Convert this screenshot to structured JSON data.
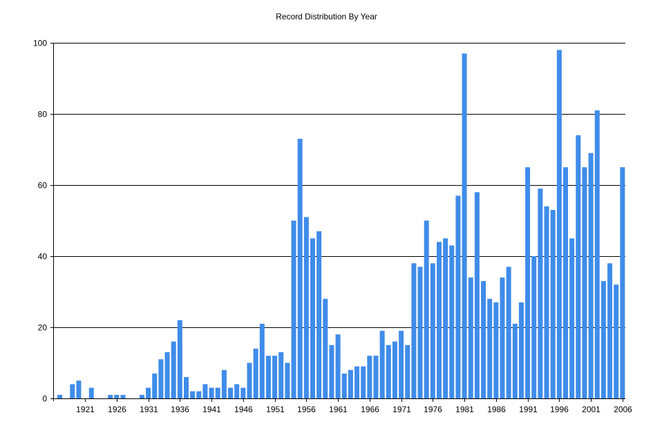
{
  "chart_data": {
    "type": "bar",
    "title": "Record Distribution By Year",
    "xlabel": "",
    "ylabel": "",
    "ylim": [
      0,
      100
    ],
    "yticks": [
      0,
      20,
      40,
      60,
      80,
      100
    ],
    "xticks": [
      1921,
      1926,
      1931,
      1936,
      1941,
      1946,
      1951,
      1956,
      1961,
      1966,
      1971,
      1976,
      1981,
      1986,
      1991,
      1996,
      2001,
      2006
    ],
    "grid": true,
    "bar_color": "#3f8cea",
    "years": [
      1917,
      1918,
      1919,
      1920,
      1921,
      1922,
      1923,
      1924,
      1925,
      1926,
      1927,
      1928,
      1929,
      1930,
      1931,
      1932,
      1933,
      1934,
      1935,
      1936,
      1937,
      1938,
      1939,
      1940,
      1941,
      1942,
      1943,
      1944,
      1945,
      1946,
      1947,
      1948,
      1949,
      1950,
      1951,
      1952,
      1953,
      1954,
      1955,
      1956,
      1957,
      1958,
      1959,
      1960,
      1961,
      1962,
      1963,
      1964,
      1965,
      1966,
      1967,
      1968,
      1969,
      1970,
      1971,
      1972,
      1973,
      1974,
      1975,
      1976,
      1977,
      1978,
      1979,
      1980,
      1981,
      1982,
      1983,
      1984,
      1985,
      1986,
      1987,
      1988,
      1989,
      1990,
      1991,
      1992,
      1993,
      1994,
      1995,
      1996,
      1997,
      1998,
      1999,
      2000,
      2001,
      2002,
      2003,
      2004,
      2005,
      2006
    ],
    "values": [
      1,
      0,
      4,
      5,
      0,
      3,
      0,
      0,
      1,
      1,
      1,
      0,
      0,
      1,
      3,
      7,
      11,
      13,
      16,
      22,
      6,
      2,
      2,
      4,
      3,
      3,
      8,
      3,
      4,
      3,
      10,
      14,
      21,
      12,
      12,
      13,
      10,
      50,
      73,
      51,
      45,
      47,
      28,
      15,
      18,
      7,
      8,
      9,
      9,
      12,
      12,
      19,
      15,
      16,
      19,
      15,
      38,
      37,
      50,
      38,
      44,
      45,
      43,
      57,
      97,
      34,
      58,
      33,
      28,
      27,
      34,
      37,
      21,
      27,
      65,
      40,
      59,
      54,
      53,
      98,
      65,
      45,
      74,
      65,
      69,
      81,
      33,
      38,
      32,
      65
    ]
  }
}
